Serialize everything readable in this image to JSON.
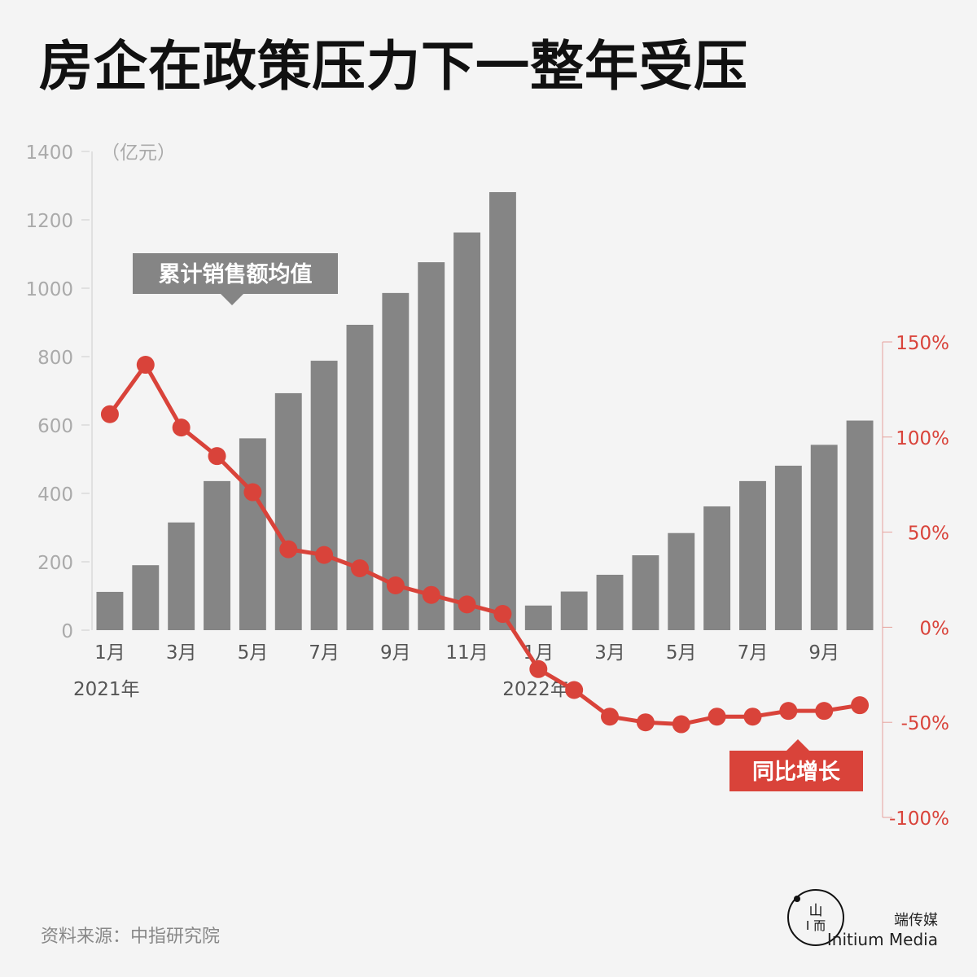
{
  "title": "房企在政策压力下一整年受压",
  "source": "资料来源：中指研究院",
  "brand": {
    "cn": "端传媒",
    "en": "Initium Media",
    "logo_color": "#111111"
  },
  "chart_data": {
    "type": "bar",
    "left_axis": {
      "unit_label": "（亿元）",
      "range": [
        0,
        1400
      ],
      "ticks": [
        0,
        200,
        400,
        600,
        800,
        1000,
        1200,
        1400
      ],
      "tick_labels": [
        "0",
        "200",
        "400",
        "600",
        "800",
        "1000",
        "1200",
        "1400"
      ]
    },
    "right_axis": {
      "range": [
        -100,
        150
      ],
      "ticks": [
        -100,
        -50,
        0,
        50,
        100,
        150
      ],
      "tick_labels": [
        "-100%",
        "-50%",
        "0%",
        "50%",
        "100%",
        "150%"
      ]
    },
    "x_tick_labels": [
      "1月",
      "",
      "3月",
      "",
      "5月",
      "",
      "7月",
      "",
      "9月",
      "",
      "11月",
      "",
      "1月",
      "",
      "3月",
      "",
      "5月",
      "",
      "7月",
      "",
      "9月",
      ""
    ],
    "year_labels": [
      {
        "text": "2021年",
        "index": 0
      },
      {
        "text": "2022年",
        "index": 12
      }
    ],
    "bars": {
      "name": "累计销售额均值",
      "color": "#858585",
      "values": [
        112,
        190,
        315,
        436,
        561,
        693,
        788,
        893,
        986,
        1076,
        1163,
        1281,
        72,
        113,
        162,
        219,
        284,
        362,
        436,
        481,
        542,
        613
      ]
    },
    "line": {
      "name": "同比增长",
      "color": "#d9433a",
      "values": [
        112,
        138,
        105,
        90,
        71,
        41,
        38,
        31,
        22,
        17,
        12,
        7,
        -22,
        -33,
        -47,
        -50,
        -51,
        -47,
        -47,
        -44,
        -44,
        -41
      ]
    },
    "label_colors": {
      "bars": "#858585",
      "line": "#d9433a"
    }
  }
}
